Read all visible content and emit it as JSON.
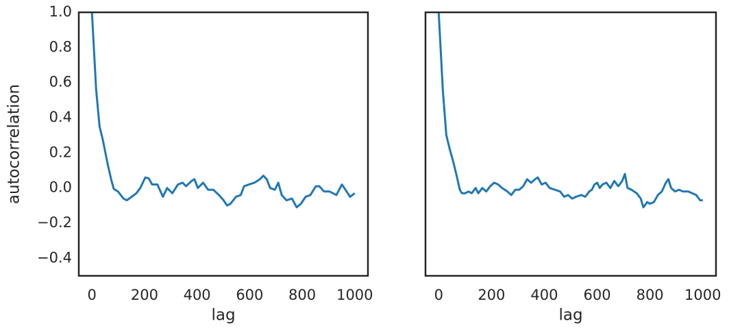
{
  "chart_data": [
    {
      "type": "line",
      "xlabel": "lag",
      "ylabel": "autocorrelation",
      "color": "#1f77b4",
      "grid": false,
      "xlim": [
        -50,
        1050
      ],
      "ylim": [
        -0.5,
        1.0
      ],
      "xticks": [
        0,
        200,
        400,
        600,
        800,
        1000
      ],
      "yticks": [
        {
          "value": -0.4,
          "label": "−0.4"
        },
        {
          "value": -0.2,
          "label": "−0.2"
        },
        {
          "value": 0,
          "label": "0.0"
        },
        0.2,
        0.4,
        0.6,
        0.8,
        {
          "value": 1.0,
          "label": "1.0"
        }
      ],
      "x": [
        0,
        16,
        29,
        42,
        60,
        73,
        83,
        99,
        120,
        133,
        151,
        169,
        184,
        203,
        216,
        229,
        249,
        270,
        286,
        306,
        327,
        345,
        358,
        379,
        390,
        403,
        423,
        442,
        462,
        483,
        501,
        514,
        527,
        548,
        566,
        579,
        597,
        618,
        639,
        652,
        665,
        678,
        696,
        709,
        722,
        740,
        761,
        779,
        795,
        813,
        831,
        852,
        865,
        883,
        904,
        930,
        951,
        969,
        982,
        1000
      ],
      "values": [
        1.0,
        0.56,
        0.35,
        0.27,
        0.135,
        0.05,
        -0.005,
        -0.02,
        -0.06,
        -0.07,
        -0.05,
        -0.03,
        0.0,
        0.06,
        0.055,
        0.02,
        0.02,
        -0.05,
        0.0,
        -0.03,
        0.02,
        0.03,
        0.01,
        0.04,
        0.05,
        0.0,
        0.03,
        -0.01,
        -0.01,
        -0.04,
        -0.07,
        -0.1,
        -0.09,
        -0.05,
        -0.04,
        0.01,
        0.02,
        0.03,
        0.05,
        0.07,
        0.05,
        0.0,
        -0.01,
        0.03,
        -0.04,
        -0.07,
        -0.06,
        -0.11,
        -0.09,
        -0.05,
        -0.04,
        0.01,
        0.01,
        -0.02,
        -0.02,
        -0.04,
        0.02,
        -0.02,
        -0.05,
        -0.03
      ]
    },
    {
      "type": "line",
      "xlabel": "lag",
      "color": "#1f77b4",
      "grid": false,
      "xlim": [
        -50,
        1050
      ],
      "ylim": [
        -0.5,
        1.0
      ],
      "xticks": [
        0,
        200,
        400,
        600,
        800,
        1000
      ],
      "x": [
        0,
        16,
        29,
        42,
        55,
        68,
        80,
        88,
        100,
        113,
        125,
        140,
        150,
        165,
        180,
        195,
        210,
        225,
        240,
        260,
        275,
        290,
        305,
        320,
        335,
        350,
        365,
        375,
        390,
        405,
        420,
        440,
        460,
        475,
        490,
        505,
        520,
        540,
        555,
        570,
        580,
        590,
        600,
        610,
        620,
        635,
        650,
        665,
        680,
        695,
        705,
        715,
        730,
        750,
        765,
        775,
        790,
        800,
        815,
        830,
        845,
        860,
        870,
        880,
        895,
        910,
        925,
        945,
        960,
        975,
        990,
        1000
      ],
      "values": [
        1.0,
        0.55,
        0.3,
        0.22,
        0.15,
        0.07,
        -0.01,
        -0.03,
        -0.03,
        -0.02,
        -0.03,
        0.0,
        -0.03,
        0.0,
        -0.02,
        0.01,
        0.03,
        0.02,
        0.0,
        -0.02,
        -0.04,
        -0.01,
        -0.01,
        0.01,
        0.05,
        0.03,
        0.05,
        0.06,
        0.02,
        0.03,
        0.0,
        -0.01,
        -0.02,
        -0.05,
        -0.04,
        -0.06,
        -0.05,
        -0.04,
        -0.05,
        -0.02,
        -0.01,
        0.02,
        0.03,
        0.0,
        0.02,
        0.03,
        0.0,
        0.04,
        0.01,
        0.04,
        0.08,
        0.0,
        -0.01,
        -0.03,
        -0.06,
        -0.11,
        -0.08,
        -0.09,
        -0.08,
        -0.04,
        -0.02,
        0.03,
        0.05,
        0.0,
        -0.02,
        -0.01,
        -0.02,
        -0.02,
        -0.03,
        -0.04,
        -0.07,
        -0.07
      ]
    }
  ]
}
